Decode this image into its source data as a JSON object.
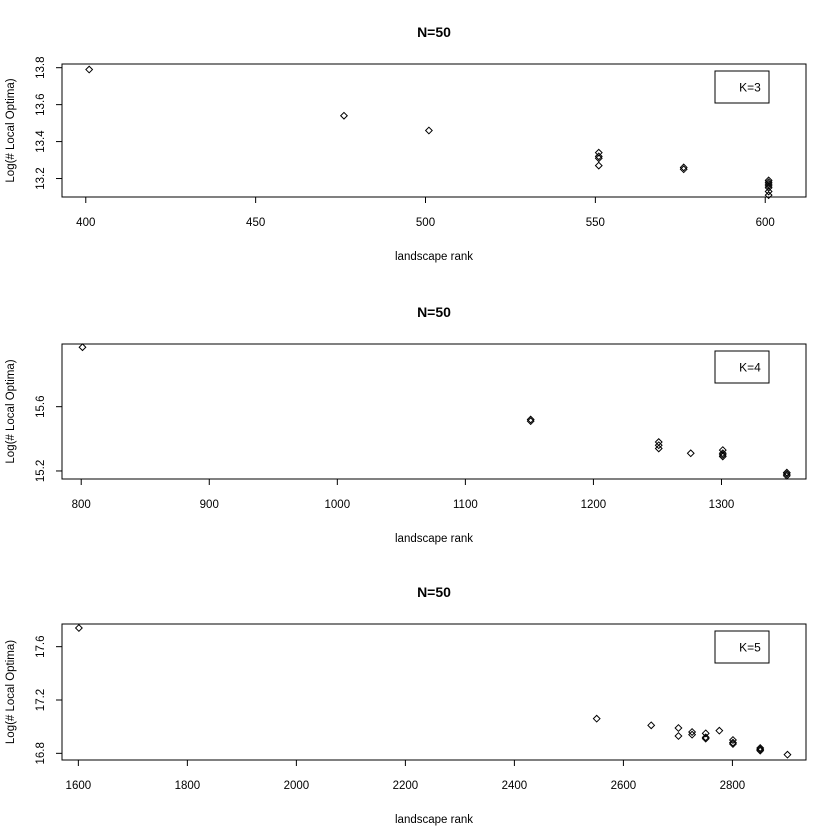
{
  "chart_data": [
    {
      "type": "scatter",
      "title": "N=50",
      "xlabel": "landscape rank",
      "ylabel": "Log(# Local Optima)",
      "legend": "K=3",
      "legend_position": "top-right",
      "xlim": [
        393,
        612
      ],
      "ylim": [
        13.1,
        13.82
      ],
      "xticks": [
        400,
        450,
        500,
        550,
        600
      ],
      "yticks": [
        13.2,
        13.4,
        13.6,
        13.8
      ],
      "xtick_labels": [
        "400",
        "450",
        "500",
        "550",
        "600"
      ],
      "ytick_labels": [
        "13.2",
        "13.4",
        "13.6",
        "13.8"
      ],
      "points": [
        {
          "x": 401,
          "y": 13.79
        },
        {
          "x": 476,
          "y": 13.54
        },
        {
          "x": 501,
          "y": 13.46
        },
        {
          "x": 551,
          "y": 13.34
        },
        {
          "x": 551,
          "y": 13.32
        },
        {
          "x": 551,
          "y": 13.31
        },
        {
          "x": 551,
          "y": 13.27
        },
        {
          "x": 576,
          "y": 13.26
        },
        {
          "x": 576,
          "y": 13.25
        },
        {
          "x": 601,
          "y": 13.19
        },
        {
          "x": 601,
          "y": 13.18
        },
        {
          "x": 601,
          "y": 13.17
        },
        {
          "x": 601,
          "y": 13.16
        },
        {
          "x": 601,
          "y": 13.15
        },
        {
          "x": 601,
          "y": 13.13
        },
        {
          "x": 601,
          "y": 13.11
        }
      ]
    },
    {
      "type": "scatter",
      "title": "N=50",
      "xlabel": "landscape rank",
      "ylabel": "Log(# Local Optima)",
      "legend": "K=4",
      "legend_position": "top-right",
      "xlim": [
        785,
        1366
      ],
      "ylim": [
        15.15,
        15.99
      ],
      "xticks": [
        800,
        900,
        1000,
        1100,
        1200,
        1300
      ],
      "yticks": [
        15.2,
        15.6
      ],
      "xtick_labels": [
        "800",
        "900",
        "1000",
        "1100",
        "1200",
        "1300"
      ],
      "ytick_labels": [
        "15.2",
        "15.6"
      ],
      "points": [
        {
          "x": 801,
          "y": 15.97
        },
        {
          "x": 1151,
          "y": 15.52
        },
        {
          "x": 1151,
          "y": 15.51
        },
        {
          "x": 1251,
          "y": 15.38
        },
        {
          "x": 1251,
          "y": 15.36
        },
        {
          "x": 1251,
          "y": 15.34
        },
        {
          "x": 1276,
          "y": 15.31
        },
        {
          "x": 1301,
          "y": 15.33
        },
        {
          "x": 1301,
          "y": 15.31
        },
        {
          "x": 1301,
          "y": 15.3
        },
        {
          "x": 1301,
          "y": 15.29
        },
        {
          "x": 1351,
          "y": 15.19
        },
        {
          "x": 1351,
          "y": 15.18
        },
        {
          "x": 1351,
          "y": 15.17
        }
      ]
    },
    {
      "type": "scatter",
      "title": "N=50",
      "xlabel": "landscape rank",
      "ylabel": "Log(# Local Optima)",
      "legend": "K=5",
      "legend_position": "top-right",
      "xlim": [
        1570,
        2935
      ],
      "ylim": [
        16.75,
        17.77
      ],
      "xticks": [
        1600,
        1800,
        2000,
        2200,
        2400,
        2600,
        2800
      ],
      "yticks": [
        16.8,
        17.2,
        17.6
      ],
      "xtick_labels": [
        "1600",
        "1800",
        "2000",
        "2200",
        "2400",
        "2600",
        "2800"
      ],
      "ytick_labels": [
        "16.8",
        "17.2",
        "17.6"
      ],
      "points": [
        {
          "x": 1601,
          "y": 17.74
        },
        {
          "x": 2551,
          "y": 17.06
        },
        {
          "x": 2651,
          "y": 17.01
        },
        {
          "x": 2701,
          "y": 16.99
        },
        {
          "x": 2701,
          "y": 16.93
        },
        {
          "x": 2726,
          "y": 16.96
        },
        {
          "x": 2726,
          "y": 16.94
        },
        {
          "x": 2751,
          "y": 16.95
        },
        {
          "x": 2751,
          "y": 16.92
        },
        {
          "x": 2751,
          "y": 16.91
        },
        {
          "x": 2776,
          "y": 16.97
        },
        {
          "x": 2801,
          "y": 16.9
        },
        {
          "x": 2801,
          "y": 16.88
        },
        {
          "x": 2801,
          "y": 16.87
        },
        {
          "x": 2851,
          "y": 16.84
        },
        {
          "x": 2851,
          "y": 16.83
        },
        {
          "x": 2851,
          "y": 16.82
        },
        {
          "x": 2901,
          "y": 16.79
        }
      ]
    }
  ]
}
